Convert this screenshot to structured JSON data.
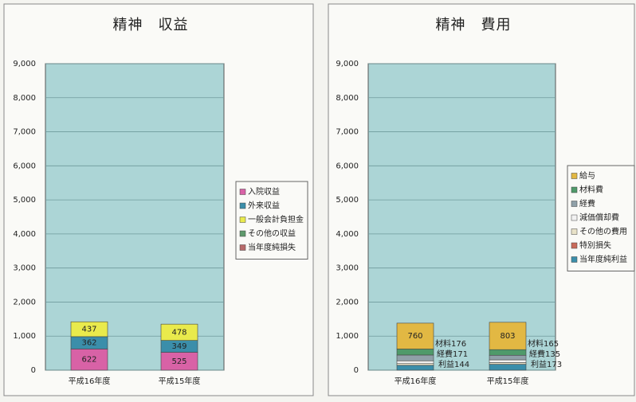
{
  "chart_data": [
    {
      "type": "stacked_bar",
      "title": "精神　収益",
      "categories": [
        "平成16年度",
        "平成15年度"
      ],
      "series": [
        {
          "name": "入院収益",
          "color": "#d862a6",
          "values": [
            622,
            525
          ]
        },
        {
          "name": "外来収益",
          "color": "#3b8eaa",
          "values": [
            362,
            349
          ]
        },
        {
          "name": "一般会計負担金",
          "color": "#e9ea4c",
          "values": [
            437,
            478
          ]
        },
        {
          "name": "その他の収益",
          "color": "#5f9a6c",
          "values": [
            0,
            0
          ]
        },
        {
          "name": "当年度純損失",
          "color": "#b86a6a",
          "values": [
            0,
            0
          ]
        }
      ],
      "ylim": [
        0,
        9000
      ],
      "yticks": [
        0,
        {
          "value": 1000,
          "label": "1,000"
        },
        {
          "value": 2000,
          "label": "2,000"
        },
        {
          "value": 3000,
          "label": "3,000"
        },
        {
          "value": 4000,
          "label": "4,000"
        },
        {
          "value": 5000,
          "label": "5,000"
        },
        {
          "value": 6000,
          "label": "6,000"
        },
        {
          "value": 7000,
          "label": "7,000"
        },
        {
          "value": 8000,
          "label": "8,000"
        },
        {
          "value": 9000,
          "label": "9,000"
        }
      ],
      "grid": true
    },
    {
      "type": "stacked_bar",
      "title": "精神　費用",
      "categories": [
        "平成16年度",
        "平成15年度"
      ],
      "series": [
        {
          "name": "当年度純利益",
          "color": "#3b8eaa",
          "values": [
            144,
            173
          ],
          "value_labels": [
            "利益144",
            "利益173"
          ]
        },
        {
          "name": "特別損失",
          "color": "#c86a5a",
          "values": [
            0,
            0
          ]
        },
        {
          "name": "その他の費用",
          "color": "#e8e2c8",
          "values": [
            50,
            50
          ]
        },
        {
          "name": "減価償却費",
          "color": "#f2f2f2",
          "values": [
            80,
            80
          ]
        },
        {
          "name": "経費",
          "color": "#8fa0a8",
          "values": [
            171,
            135
          ],
          "value_labels": [
            "経費171",
            "経費135"
          ]
        },
        {
          "name": "材料費",
          "color": "#4f9a6a",
          "values": [
            176,
            165
          ],
          "value_labels": [
            "材料176",
            "材料165"
          ]
        },
        {
          "name": "給与",
          "color": "#e2b843",
          "values": [
            760,
            803
          ]
        }
      ],
      "legend_order": "reverse",
      "ylim": [
        0,
        9000
      ],
      "yticks": [
        0,
        {
          "value": 1000,
          "label": "1,000"
        },
        {
          "value": 2000,
          "label": "2,000"
        },
        {
          "value": 3000,
          "label": "3,000"
        },
        {
          "value": 4000,
          "label": "4,000"
        },
        {
          "value": 5000,
          "label": "5,000"
        },
        {
          "value": 6000,
          "label": "6,000"
        },
        {
          "value": 7000,
          "label": "7,000"
        },
        {
          "value": 8000,
          "label": "8,000"
        },
        {
          "value": 9000,
          "label": "9,000"
        }
      ],
      "grid": true
    }
  ]
}
